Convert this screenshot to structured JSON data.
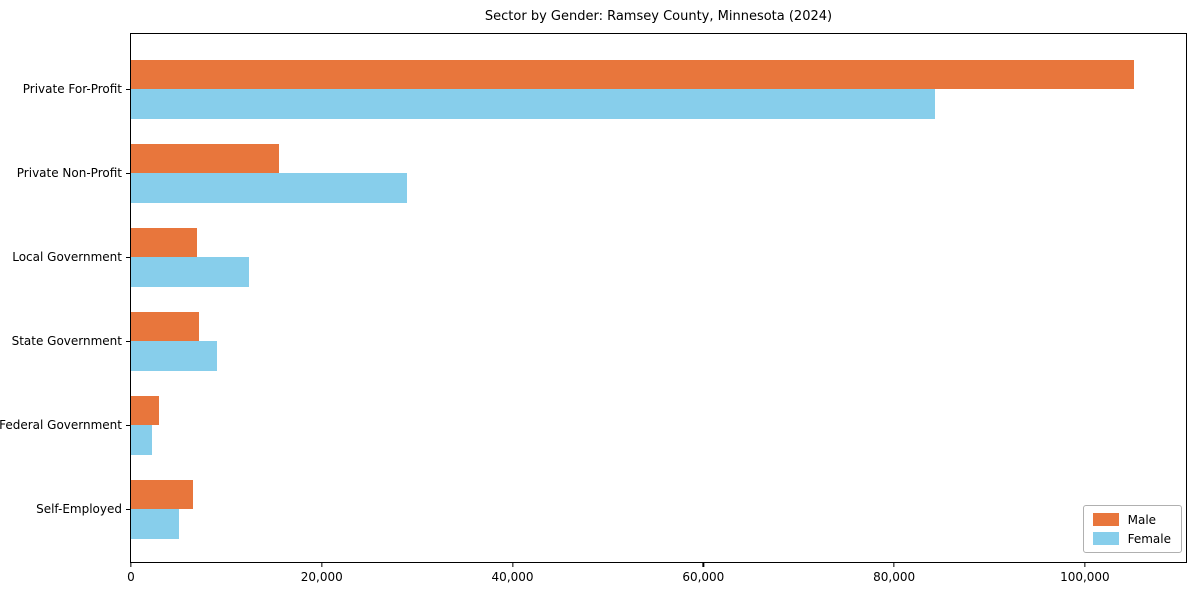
{
  "chart_data": {
    "type": "bar",
    "orientation": "horizontal",
    "title": "Sector by Gender: Ramsey County, Minnesota (2024)",
    "xlabel": "",
    "ylabel": "",
    "grid": false,
    "background": "#ffffff",
    "categories": [
      "Private For-Profit",
      "Private Non-Profit",
      "Local Government",
      "State Government",
      "Federal Government",
      "Self-Employed"
    ],
    "series": [
      {
        "name": "Male",
        "color": "#e8763c",
        "values": [
          105200,
          15500,
          6900,
          7100,
          2900,
          6500
        ]
      },
      {
        "name": "Female",
        "color": "#87ceeb",
        "values": [
          84300,
          28900,
          12400,
          9000,
          2200,
          5000
        ]
      }
    ],
    "x_axis": {
      "min": 0,
      "max": 110600,
      "ticks": [
        0,
        20000,
        40000,
        60000,
        80000,
        100000
      ],
      "tick_labels": [
        "0",
        "20,000",
        "40,000",
        "60,000",
        "80,000",
        "100,000"
      ]
    },
    "legend": {
      "position": "lower right",
      "entries": [
        "Male",
        "Female"
      ]
    }
  }
}
